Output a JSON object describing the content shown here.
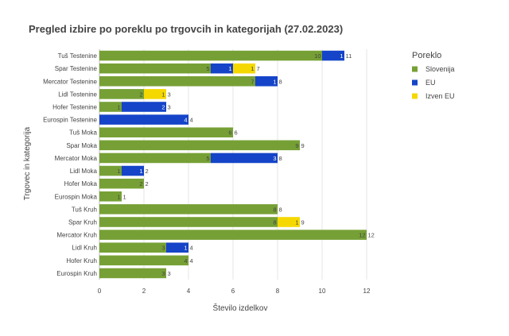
{
  "chart_data": {
    "type": "bar",
    "orientation": "horizontal",
    "stacked": true,
    "title": "Pregled izbire po poreklu po trgovcih in kategorijah (27.02.2023)",
    "xlabel": "Število izdelkov",
    "ylabel": "Trgovec in kategorija",
    "xlim": [
      0,
      12.5
    ],
    "xticks": [
      "0",
      "2",
      "4",
      "6",
      "8",
      "10",
      "12"
    ],
    "grid": true,
    "legend_position": "right",
    "legend_title": "Poreklo",
    "categories": [
      "Tuš Testenine",
      "Spar Testenine",
      "Mercator Testenine",
      "Lidl Testenine",
      "Hofer Testenine",
      "Eurospin Testenine",
      "Tuš Moka",
      "Spar Moka",
      "Mercator Moka",
      "Lidl Moka",
      "Hofer Moka",
      "Eurospin Moka",
      "Tuš Kruh",
      "Spar Kruh",
      "Mercator Kruh",
      "Lidl Kruh",
      "Hofer Kruh",
      "Eurospin Kruh"
    ],
    "series": [
      {
        "name": "Slovenija",
        "color": "#76a035",
        "label_color": "#444444",
        "values": [
          10,
          5,
          7,
          2,
          1,
          0,
          6,
          9,
          5,
          1,
          2,
          1,
          8,
          8,
          12,
          3,
          4,
          3
        ]
      },
      {
        "name": "EU",
        "color": "#1544c8",
        "label_color": "#ffffff",
        "values": [
          1,
          1,
          1,
          0,
          2,
          4,
          0,
          0,
          3,
          1,
          0,
          0,
          0,
          0,
          0,
          1,
          0,
          0
        ]
      },
      {
        "name": "Izven EU",
        "color": "#f5d800",
        "label_color": "#444444",
        "values": [
          0,
          1,
          0,
          1,
          0,
          0,
          0,
          0,
          0,
          0,
          0,
          0,
          0,
          1,
          0,
          0,
          0,
          0
        ]
      }
    ],
    "totals": [
      11,
      7,
      8,
      3,
      3,
      4,
      6,
      9,
      8,
      2,
      2,
      1,
      8,
      9,
      12,
      4,
      4,
      3
    ]
  }
}
